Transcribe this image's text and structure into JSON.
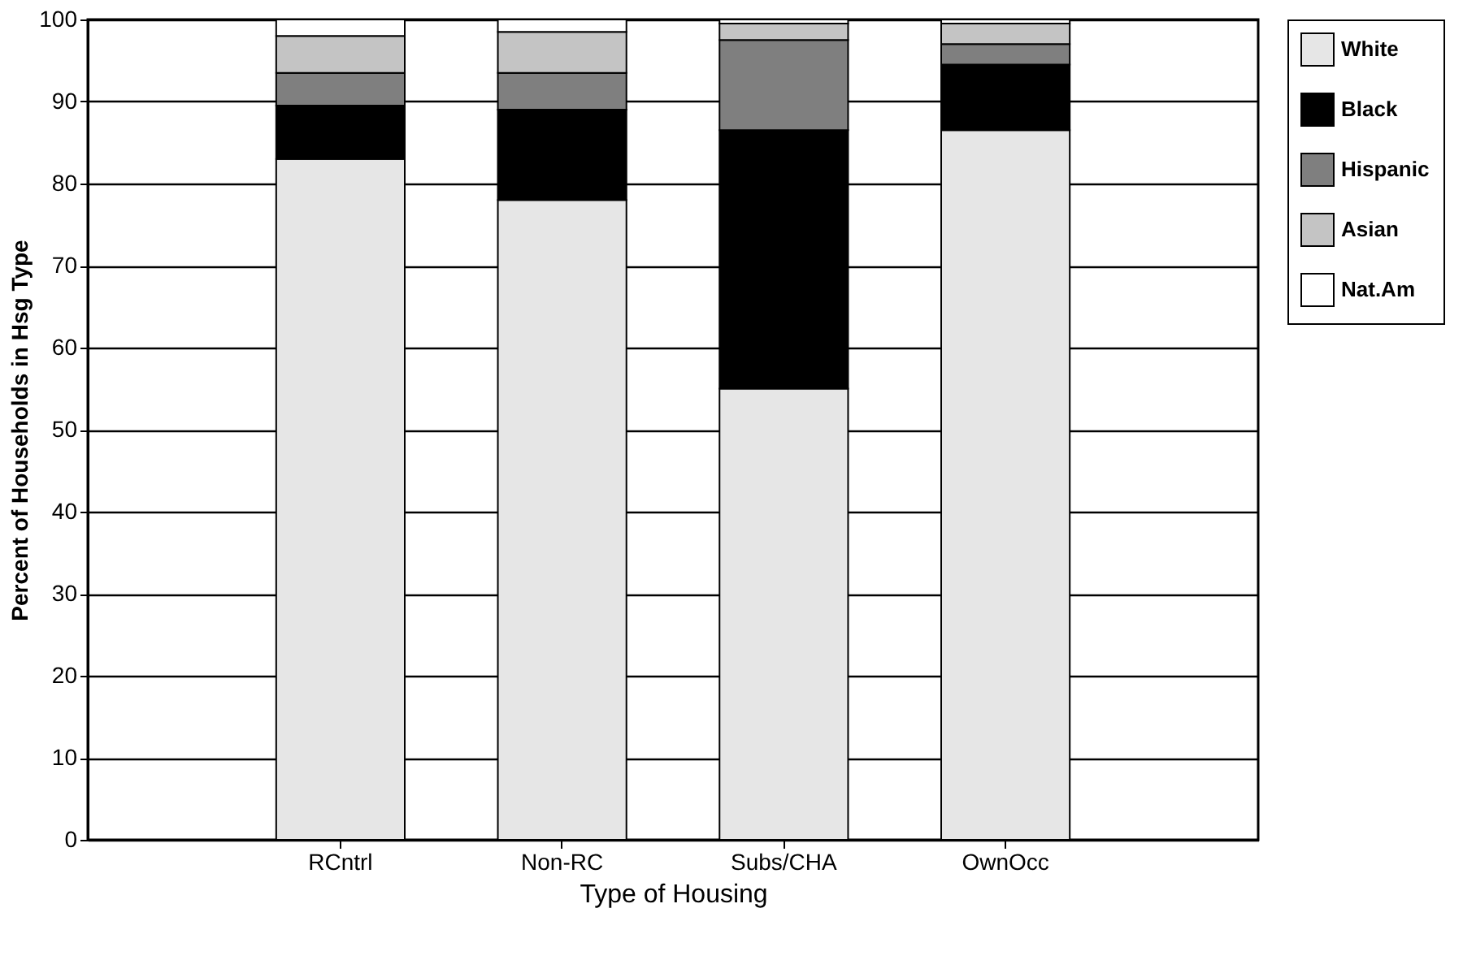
{
  "chart_data": {
    "type": "bar",
    "stacked": true,
    "xlabel": "Type of Housing",
    "ylabel": "Percent of Households in Hsg Type",
    "categories": [
      "RCntrl",
      "Non-RC",
      "Subs/CHA",
      "OwnOcc"
    ],
    "series": [
      {
        "name": "White",
        "color": "#e6e6e6",
        "values": [
          83,
          78,
          55,
          86.5
        ]
      },
      {
        "name": "Black",
        "color": "#000000",
        "values": [
          6.5,
          11,
          31.5,
          8
        ]
      },
      {
        "name": "Hispanic",
        "color": "#7f7f7f",
        "values": [
          4,
          4.5,
          11,
          2.5
        ]
      },
      {
        "name": "Asian",
        "color": "#c4c4c4",
        "values": [
          4.5,
          5,
          2,
          2.5
        ]
      },
      {
        "name": "Nat.Am",
        "color": "#ffffff",
        "values": [
          2,
          1.5,
          0.5,
          0.5
        ]
      }
    ],
    "ylim": [
      0,
      100
    ],
    "yticks": [
      0,
      10,
      20,
      30,
      40,
      50,
      60,
      70,
      80,
      90,
      100
    ],
    "grid": "y",
    "legend": "right"
  }
}
